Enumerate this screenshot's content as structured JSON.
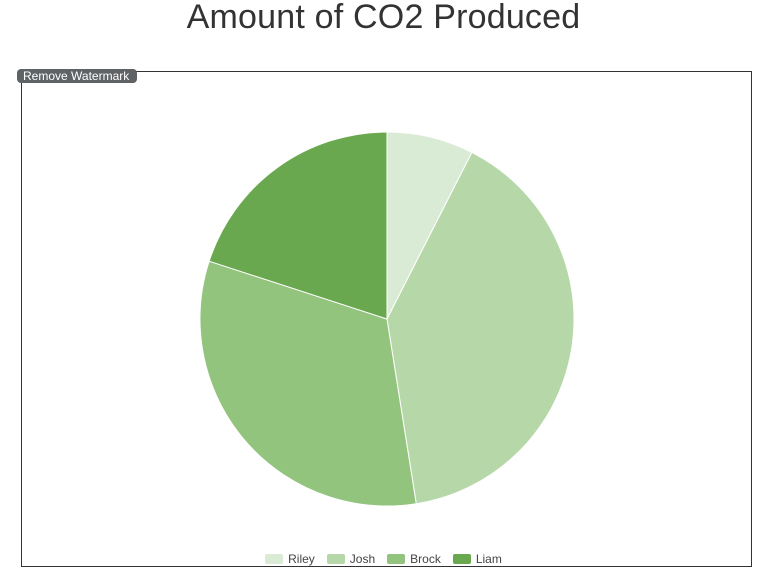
{
  "header": {
    "title": "Amount of CO2 Produced"
  },
  "watermark": {
    "label": "Remove Watermark"
  },
  "chart_data": {
    "type": "pie",
    "title": "Amount of CO2 Produced",
    "legend_position": "bottom",
    "categories": [
      "Riley",
      "Josh",
      "Brock",
      "Liam"
    ],
    "values": [
      7.5,
      40,
      32.5,
      20
    ],
    "colors": [
      "#d9ebd4",
      "#b6d8a9",
      "#93c47d",
      "#6aa84f"
    ]
  }
}
